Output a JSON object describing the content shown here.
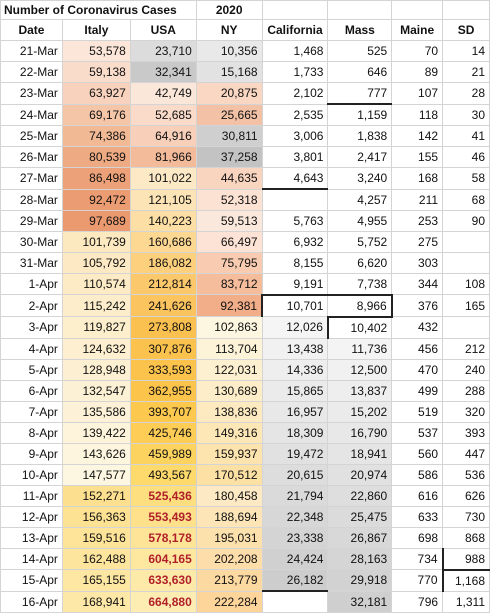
{
  "title": "Number of Coronavirus Cases",
  "year": "2020",
  "columns": [
    "Date",
    "Italy",
    "USA",
    "NY",
    "California",
    "Mass",
    "Maine",
    "SD"
  ],
  "rows": [
    [
      "21-Mar",
      "53,578",
      "23,710",
      "10,356",
      "1,468",
      "525",
      "70",
      "14"
    ],
    [
      "22-Mar",
      "59,138",
      "32,341",
      "15,168",
      "1,733",
      "646",
      "89",
      "21"
    ],
    [
      "23-Mar",
      "63,927",
      "42,749",
      "20,875",
      "2,102",
      "777",
      "107",
      "28"
    ],
    [
      "24-Mar",
      "69,176",
      "52,685",
      "25,665",
      "2,535",
      "1,159",
      "118",
      "30"
    ],
    [
      "25-Mar",
      "74,386",
      "64,916",
      "30,811",
      "3,006",
      "1,838",
      "142",
      "41"
    ],
    [
      "26-Mar",
      "80,539",
      "81,966",
      "37,258",
      "3,801",
      "2,417",
      "155",
      "46"
    ],
    [
      "27-Mar",
      "86,498",
      "101,022",
      "44,635",
      "4,643",
      "3,240",
      "168",
      "58"
    ],
    [
      "28-Mar",
      "92,472",
      "121,105",
      "52,318",
      "",
      "4,257",
      "211",
      "68"
    ],
    [
      "29-Mar",
      "97,689",
      "140,223",
      "59,513",
      "5,763",
      "4,955",
      "253",
      "90"
    ],
    [
      "30-Mar",
      "101,739",
      "160,686",
      "66,497",
      "6,932",
      "5,752",
      "275",
      ""
    ],
    [
      "31-Mar",
      "105,792",
      "186,082",
      "75,795",
      "8,155",
      "6,620",
      "303",
      ""
    ],
    [
      "1-Apr",
      "110,574",
      "212,814",
      "83,712",
      "9,191",
      "7,738",
      "344",
      "108"
    ],
    [
      "2-Apr",
      "115,242",
      "241,626",
      "92,381",
      "10,701",
      "8,966",
      "376",
      "165"
    ],
    [
      "3-Apr",
      "119,827",
      "273,808",
      "102,863",
      "12,026",
      "10,402",
      "432",
      ""
    ],
    [
      "4-Apr",
      "124,632",
      "307,876",
      "113,704",
      "13,438",
      "11,736",
      "456",
      "212"
    ],
    [
      "5-Apr",
      "128,948",
      "333,593",
      "122,031",
      "14,336",
      "12,500",
      "470",
      "240"
    ],
    [
      "6-Apr",
      "132,547",
      "362,955",
      "130,689",
      "15,865",
      "13,837",
      "499",
      "288"
    ],
    [
      "7-Apr",
      "135,586",
      "393,707",
      "138,836",
      "16,957",
      "15,202",
      "519",
      "320"
    ],
    [
      "8-Apr",
      "139,422",
      "425,746",
      "149,316",
      "18,309",
      "16,790",
      "537",
      "393"
    ],
    [
      "9-Apr",
      "143,626",
      "459,989",
      "159,937",
      "19,472",
      "18,941",
      "560",
      "447"
    ],
    [
      "10-Apr",
      "147,577",
      "493,567",
      "170,512",
      "20,615",
      "20,974",
      "586",
      "536"
    ],
    [
      "11-Apr",
      "152,271",
      "525,436",
      "180,458",
      "21,794",
      "22,860",
      "616",
      "626"
    ],
    [
      "12-Apr",
      "156,363",
      "553,493",
      "188,694",
      "22,348",
      "25,475",
      "633",
      "730"
    ],
    [
      "13-Apr",
      "159,516",
      "578,178",
      "195,031",
      "23,338",
      "26,867",
      "698",
      "868"
    ],
    [
      "14-Apr",
      "162,488",
      "604,165",
      "202,208",
      "24,424",
      "28,163",
      "734",
      "988"
    ],
    [
      "15-Apr",
      "165,155",
      "633,630",
      "213,779",
      "26,182",
      "29,918",
      "770",
      "1,168"
    ],
    [
      "16-Apr",
      "168,941",
      "664,880",
      "222,284",
      "",
      "32,181",
      "796",
      "1,311"
    ]
  ],
  "red_text_rows_usa": [
    21,
    22,
    23,
    24,
    25,
    26
  ],
  "colors": {
    "italy": [
      "#fbe6d9",
      "#fadccb",
      "#f8d2bc",
      "#f5c5a8",
      "#f2b995",
      "#eeab83",
      "#eda178",
      "#ec9c72",
      "#eb9a70",
      "#fde9c0",
      "#fdeac4",
      "#fdebc6",
      "#fdedca",
      "#fdeecc",
      "#fdefcf",
      "#fdf0d2",
      "#fdf1d5",
      "#fdf2d8",
      "#fdf4db",
      "#fdf5de",
      "#fdf6e1",
      "#fde08f",
      "#fde294",
      "#fde499",
      "#fde59e",
      "#fde7a3",
      "#fde8a8"
    ],
    "usa": [
      "#dcdcdc",
      "#c9c9c9",
      "#fbe7da",
      "#fadbc9",
      "#f8d0ba",
      "#f3bb9a",
      "#fde9c6",
      "#fde4b6",
      "#fddfa6",
      "#fdd893",
      "#fdd07e",
      "#fbc96c",
      "#fbc45f",
      "#fbc150",
      "#fcc24e",
      "#fcc34c",
      "#fcc44b",
      "#fdc84e",
      "#fdcd55",
      "#fdd35f",
      "#fed96c",
      "#fedf80",
      "#fee18a",
      "#fee496",
      "#fee89f",
      "#feeaa8",
      "#feedb2"
    ],
    "ny": [
      "#e9e9e9",
      "#e2e2e2",
      "#f9d7c2",
      "#f3c2a6",
      "#cfcfcf",
      "#c3c3c3",
      "#f9d5bf",
      "#fbe2d3",
      "#fbe8dc",
      "#fde3d5",
      "#f9cbb0",
      "#f6bd9c",
      "#f2ae88",
      "#fdf6e1",
      "#fdf3d8",
      "#fdf0d0",
      "#fdedc8",
      "#fdeac0",
      "#fde7b6",
      "#fde3ad",
      "#fde0a4",
      "#fde9c4",
      "#fde5b8",
      "#fde1ad",
      "#fdddaa",
      "#fdd9a2",
      "#fdd59b"
    ],
    "cal": [
      "#ffffff",
      "#ffffff",
      "#ffffff",
      "#ffffff",
      "#ffffff",
      "#ffffff",
      "#ffffff",
      "#ffffff",
      "#ffffff",
      "#ffffff",
      "#ffffff",
      "#ffffff",
      "#ffffff",
      "#f5f5f5",
      "#f1f1f1",
      "#eeeeee",
      "#ebebeb",
      "#e8e8e8",
      "#e5e5e5",
      "#e1e1e1",
      "#dddddd",
      "#dadada",
      "#d7d7d7",
      "#d4d4d4",
      "#d0d0d0",
      "#cdcdcd",
      "#ffffff"
    ],
    "mass": [
      "#ffffff",
      "#ffffff",
      "#ffffff",
      "#ffffff",
      "#ffffff",
      "#ffffff",
      "#ffffff",
      "#ffffff",
      "#ffffff",
      "#ffffff",
      "#ffffff",
      "#ffffff",
      "#ffffff",
      "#ffffff",
      "#f4f4f4",
      "#f1f1f1",
      "#eeeeee",
      "#ebebeb",
      "#e8e8e8",
      "#e5e5e5",
      "#e1e1e1",
      "#dedede",
      "#dbdbdb",
      "#d8d8d8",
      "#d5d5d5",
      "#d2d2d2",
      "#cfcfcf"
    ]
  }
}
